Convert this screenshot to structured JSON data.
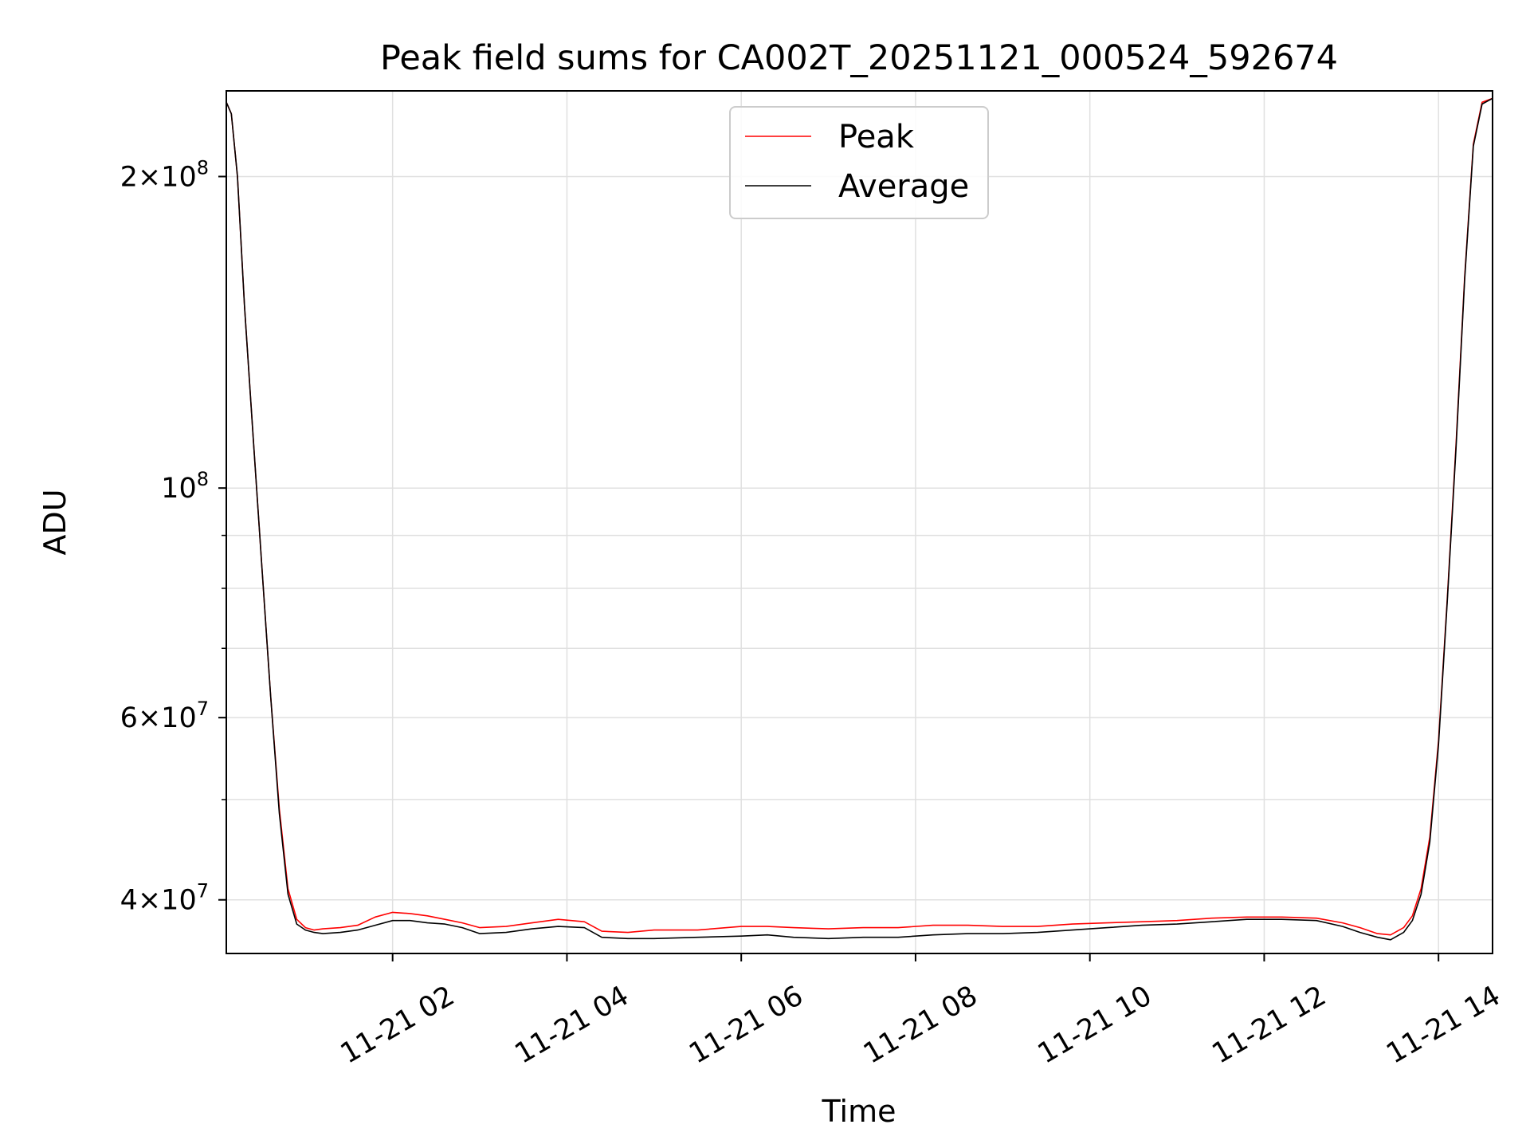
{
  "chart_data": {
    "type": "line",
    "title": "Peak field sums for CA002T_20251121_000524_592674",
    "xlabel": "Time",
    "ylabel": "ADU",
    "yscale": "log",
    "xlim": [
      0.092,
      14.62
    ],
    "ylim": [
      35500000,
      242000000
    ],
    "grid": true,
    "legend_position": "top-center",
    "x_ticks": [
      {
        "value": 2,
        "label": "11-21 02"
      },
      {
        "value": 4,
        "label": "11-21 04"
      },
      {
        "value": 6,
        "label": "11-21 06"
      },
      {
        "value": 8,
        "label": "11-21 08"
      },
      {
        "value": 10,
        "label": "11-21 10"
      },
      {
        "value": 12,
        "label": "11-21 12"
      },
      {
        "value": 14,
        "label": "11-21 14"
      }
    ],
    "y_major_ticks": [
      {
        "value": 40000000,
        "mantissa": "4",
        "base": "10",
        "exponent": "7"
      },
      {
        "value": 60000000,
        "mantissa": "6",
        "base": "10",
        "exponent": "7"
      },
      {
        "value": 100000000,
        "mantissa": "",
        "base": "10",
        "exponent": "8"
      },
      {
        "value": 200000000,
        "mantissa": "2",
        "base": "10",
        "exponent": "8"
      }
    ],
    "y_minor_grid": [
      50000000,
      70000000,
      80000000,
      90000000
    ],
    "series": [
      {
        "name": "Peak",
        "color": "#ff0000",
        "x": [
          0.092,
          0.15,
          0.22,
          0.3,
          0.4,
          0.5,
          0.6,
          0.7,
          0.8,
          0.9,
          1.0,
          1.1,
          1.2,
          1.4,
          1.6,
          1.8,
          2.0,
          2.2,
          2.4,
          2.6,
          2.8,
          3.0,
          3.3,
          3.6,
          3.9,
          4.2,
          4.4,
          4.7,
          5.0,
          5.5,
          6.0,
          6.3,
          6.6,
          7.0,
          7.4,
          7.8,
          8.2,
          8.6,
          9.0,
          9.4,
          9.8,
          10.2,
          10.6,
          11.0,
          11.4,
          11.8,
          12.2,
          12.6,
          12.9,
          13.1,
          13.3,
          13.45,
          13.6,
          13.7,
          13.8,
          13.9,
          14.0,
          14.1,
          14.2,
          14.3,
          14.4,
          14.5,
          14.62
        ],
        "values": [
          236000000,
          230000000,
          200000000,
          150000000,
          112000000,
          84000000,
          63000000,
          49000000,
          41000000,
          38300000,
          37600000,
          37400000,
          37500000,
          37600000,
          37800000,
          38500000,
          38900000,
          38800000,
          38600000,
          38300000,
          38000000,
          37600000,
          37700000,
          38000000,
          38300000,
          38100000,
          37300000,
          37200000,
          37400000,
          37400000,
          37700000,
          37700000,
          37600000,
          37500000,
          37600000,
          37600000,
          37800000,
          37800000,
          37700000,
          37700000,
          37900000,
          38000000,
          38100000,
          38200000,
          38400000,
          38500000,
          38500000,
          38400000,
          38000000,
          37600000,
          37100000,
          37000000,
          37600000,
          38600000,
          41000000,
          46000000,
          57000000,
          78000000,
          110000000,
          160000000,
          215000000,
          236000000,
          238000000
        ]
      },
      {
        "name": "Average",
        "color": "#000000",
        "x": [
          0.092,
          0.15,
          0.22,
          0.3,
          0.4,
          0.5,
          0.6,
          0.7,
          0.8,
          0.9,
          1.0,
          1.1,
          1.2,
          1.4,
          1.6,
          1.8,
          2.0,
          2.2,
          2.4,
          2.6,
          2.8,
          3.0,
          3.3,
          3.6,
          3.9,
          4.2,
          4.4,
          4.7,
          5.0,
          5.5,
          6.0,
          6.3,
          6.6,
          7.0,
          7.4,
          7.8,
          8.2,
          8.6,
          9.0,
          9.4,
          9.8,
          10.2,
          10.6,
          11.0,
          11.4,
          11.8,
          12.2,
          12.6,
          12.9,
          13.1,
          13.3,
          13.45,
          13.6,
          13.7,
          13.8,
          13.9,
          14.0,
          14.1,
          14.2,
          14.3,
          14.4,
          14.5,
          14.62
        ],
        "values": [
          236000000,
          230000000,
          200000000,
          150000000,
          112000000,
          84000000,
          63000000,
          48500000,
          40500000,
          37900000,
          37400000,
          37200000,
          37100000,
          37200000,
          37400000,
          37800000,
          38200000,
          38200000,
          38000000,
          37900000,
          37600000,
          37100000,
          37200000,
          37500000,
          37700000,
          37600000,
          36800000,
          36700000,
          36700000,
          36800000,
          36900000,
          37000000,
          36800000,
          36700000,
          36800000,
          36800000,
          37000000,
          37100000,
          37100000,
          37200000,
          37400000,
          37600000,
          37800000,
          37900000,
          38100000,
          38300000,
          38300000,
          38200000,
          37700000,
          37200000,
          36800000,
          36600000,
          37200000,
          38200000,
          40500000,
          45500000,
          56500000,
          77500000,
          109000000,
          159000000,
          214000000,
          235000000,
          238000000
        ]
      }
    ]
  }
}
